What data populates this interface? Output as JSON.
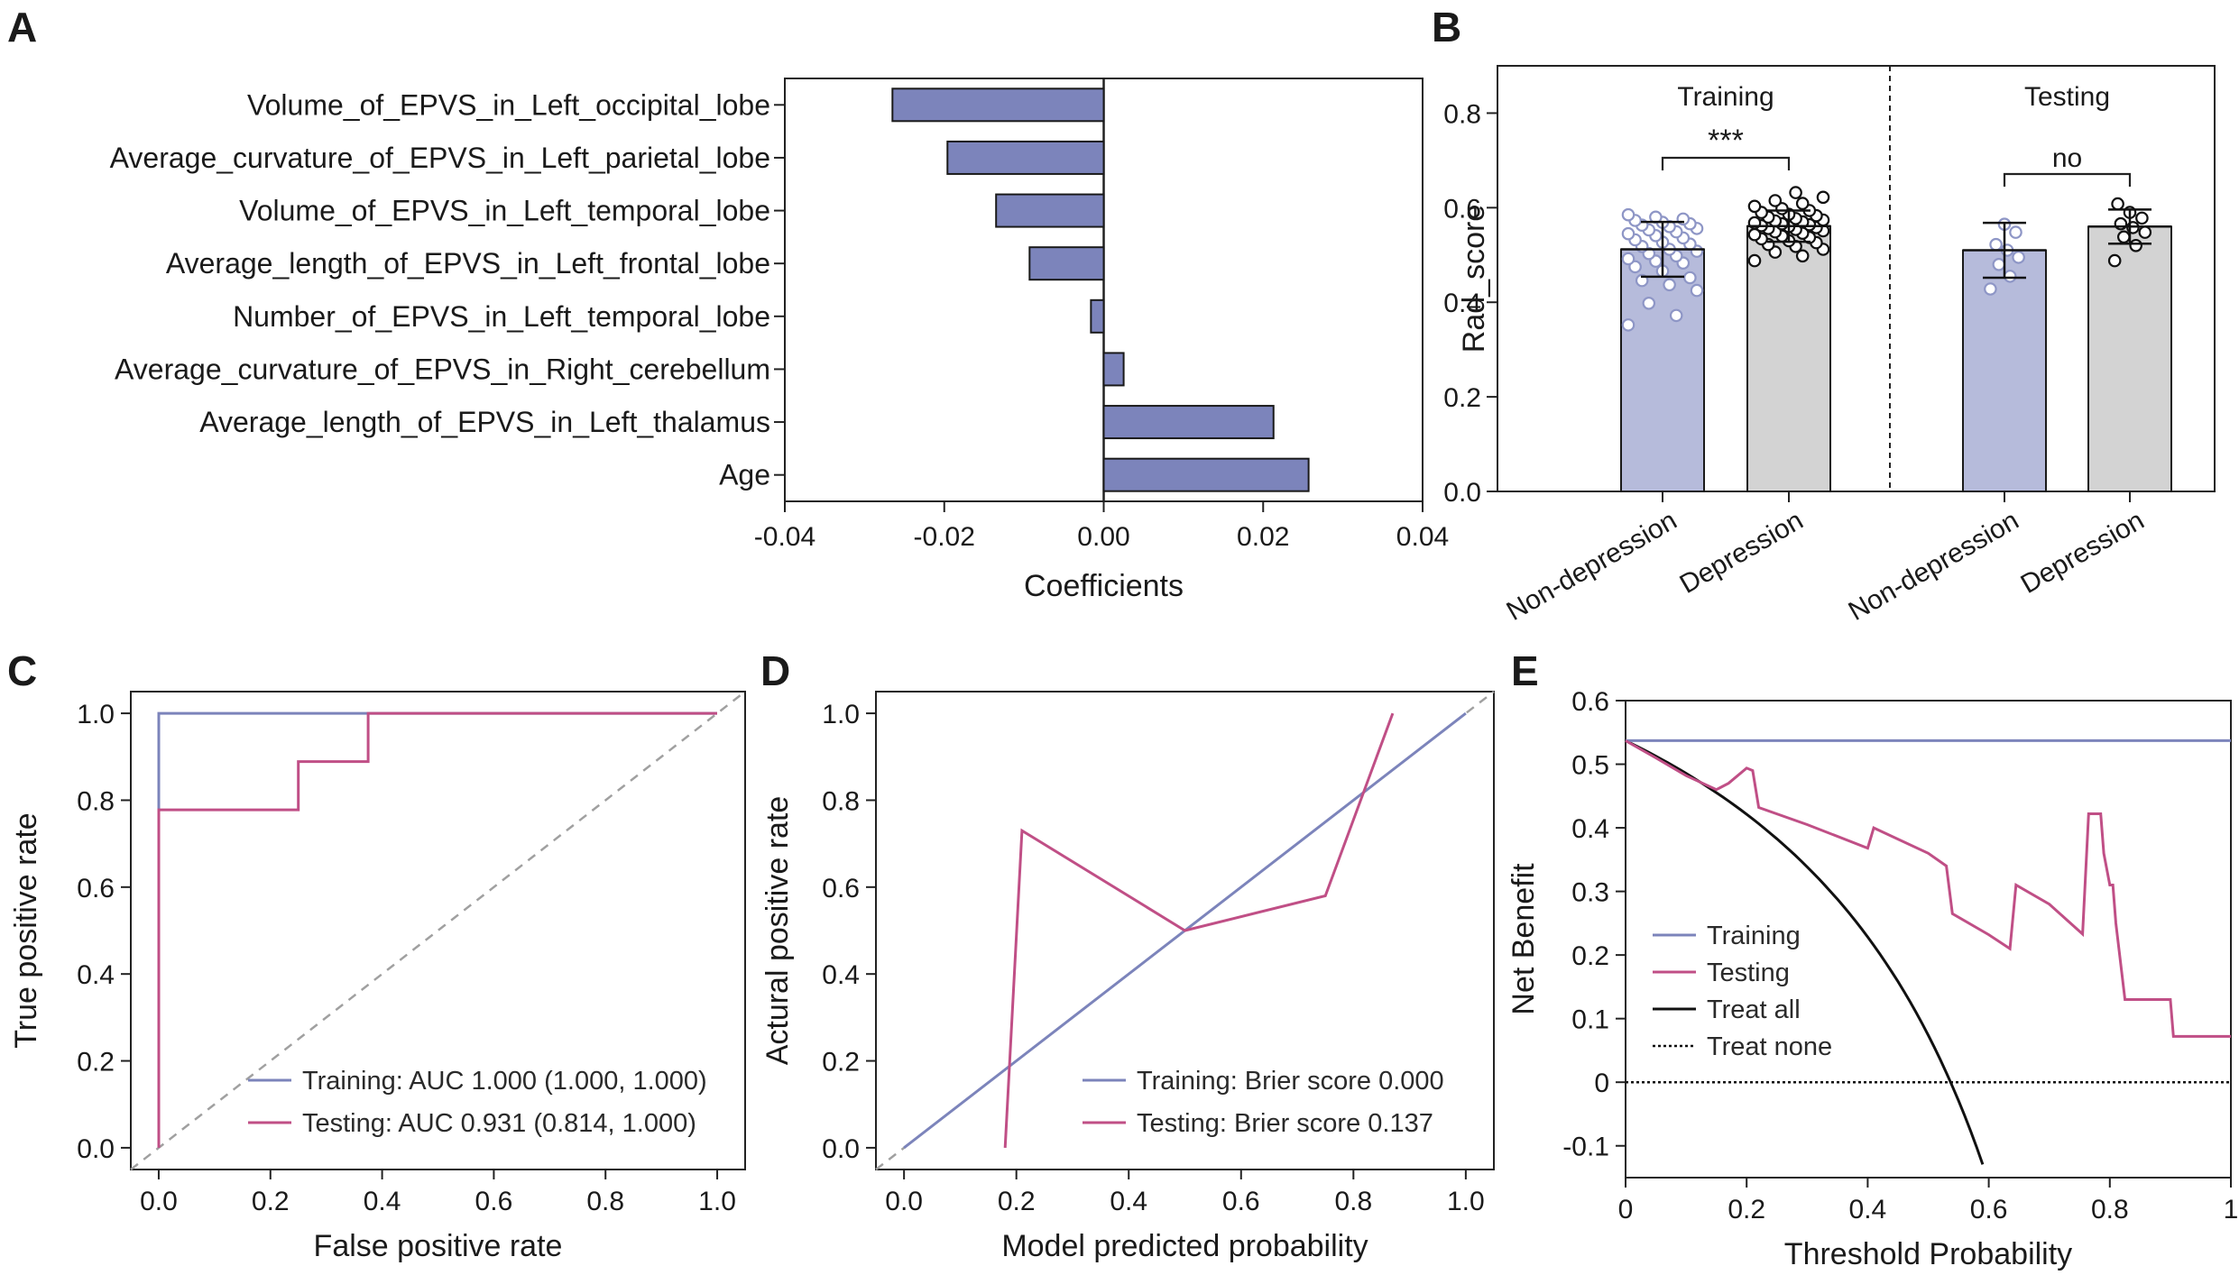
{
  "panels": {
    "A": "A",
    "B": "B",
    "C": "C",
    "D": "D",
    "E": "E"
  },
  "colors": {
    "training": "#7c84bb",
    "testing": "#c04f86",
    "bar_fill_A": "#7c84bb",
    "bar_nondep": "#b6bbdb",
    "bar_dep": "#d3d3d3",
    "dot_nondep": "#8e96c6",
    "black": "#111111",
    "diag": "#a0a0a0"
  },
  "chart_data": [
    {
      "id": "A",
      "type": "bar",
      "orientation": "horizontal",
      "categories": [
        "Volume_of_EPVS_in_Left_occipital_lobe",
        "Average_curvature_of_EPVS_in_Left_parietal_lobe",
        "Volume_of_EPVS_in_Left_temporal_lobe",
        "Average_length_of_EPVS_in_Left_frontal_lobe",
        "Number_of_EPVS_in_Left_temporal_lobe",
        "Average_curvature_of_EPVS_in_Right_cerebellum",
        "Average_length_of_EPVS_in_Left_thalamus",
        "Age"
      ],
      "values": [
        -0.0265,
        -0.0196,
        -0.0135,
        -0.0093,
        -0.0016,
        0.0025,
        0.0213,
        0.0257
      ],
      "xlim": [
        -0.04,
        0.04
      ],
      "xticks": [
        "-0.04",
        "-0.02",
        "0.00",
        "0.02",
        "0.04"
      ],
      "xlabel": "Coefficients"
    },
    {
      "id": "B",
      "type": "bar",
      "ylabel": "Rad_score",
      "ylim": [
        0,
        0.9
      ],
      "yticks": [
        "0.0",
        "0.2",
        "0.4",
        "0.6",
        "0.8"
      ],
      "groups": [
        {
          "name": "Training",
          "significance": "***",
          "bars": [
            {
              "label": "Non-depression",
              "mean": 0.512,
              "sd": 0.058,
              "points": [
                0.352,
                0.372,
                0.398,
                0.425,
                0.437,
                0.446,
                0.452,
                0.466,
                0.475,
                0.483,
                0.487,
                0.492,
                0.498,
                0.503,
                0.508,
                0.512,
                0.518,
                0.523,
                0.527,
                0.532,
                0.536,
                0.541,
                0.545,
                0.549,
                0.553,
                0.556,
                0.56,
                0.563,
                0.566,
                0.569,
                0.573,
                0.576,
                0.58,
                0.585
              ]
            },
            {
              "label": "Depression",
              "mean": 0.561,
              "sd": 0.033,
              "points": [
                0.488,
                0.498,
                0.506,
                0.512,
                0.518,
                0.522,
                0.526,
                0.53,
                0.534,
                0.537,
                0.54,
                0.543,
                0.546,
                0.549,
                0.551,
                0.554,
                0.556,
                0.558,
                0.56,
                0.562,
                0.564,
                0.566,
                0.568,
                0.57,
                0.572,
                0.574,
                0.577,
                0.58,
                0.583,
                0.586,
                0.59,
                0.594,
                0.598,
                0.603,
                0.609,
                0.615,
                0.622,
                0.632
              ]
            }
          ]
        },
        {
          "name": "Testing",
          "significance": "no",
          "bars": [
            {
              "label": "Non-depression",
              "mean": 0.51,
              "sd": 0.058,
              "points": [
                0.428,
                0.455,
                0.48,
                0.495,
                0.51,
                0.522,
                0.548,
                0.565
              ]
            },
            {
              "label": "Depression",
              "mean": 0.56,
              "sd": 0.036,
              "points": [
                0.488,
                0.52,
                0.538,
                0.548,
                0.558,
                0.566,
                0.578,
                0.59,
                0.608
              ]
            }
          ]
        }
      ]
    },
    {
      "id": "C",
      "type": "line",
      "xlabel": "False positive rate",
      "ylabel": "True positive rate",
      "xlim": [
        -0.05,
        1.05
      ],
      "ylim": [
        -0.05,
        1.05
      ],
      "xticks": [
        "0.0",
        "0.2",
        "0.4",
        "0.6",
        "0.8",
        "1.0"
      ],
      "yticks": [
        "0.0",
        "0.2",
        "0.4",
        "0.6",
        "0.8",
        "1.0"
      ],
      "series": [
        {
          "name": "Training: AUC 1.000 (1.000, 1.000)",
          "x": [
            0,
            0,
            1
          ],
          "y": [
            0,
            1,
            1
          ]
        },
        {
          "name": "Testing: AUC 0.931 (0.814, 1.000)",
          "x": [
            0,
            0,
            0.25,
            0.25,
            0.375,
            0.375,
            1
          ],
          "y": [
            0,
            0.778,
            0.778,
            0.889,
            0.889,
            1,
            1
          ]
        }
      ]
    },
    {
      "id": "D",
      "type": "line",
      "xlabel": "Model predicted probability",
      "ylabel": "Actural positive rate",
      "xlim": [
        -0.05,
        1.05
      ],
      "ylim": [
        -0.05,
        1.05
      ],
      "xticks": [
        "0.0",
        "0.2",
        "0.4",
        "0.6",
        "0.8",
        "1.0"
      ],
      "yticks": [
        "0.0",
        "0.2",
        "0.4",
        "0.6",
        "0.8",
        "1.0"
      ],
      "series": [
        {
          "name": "Training: Brier score 0.000",
          "x": [
            0,
            1
          ],
          "y": [
            0,
            1
          ]
        },
        {
          "name": "Testing: Brier score 0.137",
          "x": [
            0.18,
            0.21,
            0.5,
            0.75,
            0.87
          ],
          "y": [
            0,
            0.73,
            0.5,
            0.58,
            1.0
          ]
        }
      ]
    },
    {
      "id": "E",
      "type": "line",
      "xlabel": "Threshold Probability",
      "ylabel": "Net Benefit",
      "xlim": [
        0,
        1
      ],
      "ylim": [
        -0.15,
        0.6
      ],
      "xticks": [
        "0",
        "0.2",
        "0.4",
        "0.6",
        "0.8",
        "1"
      ],
      "yticks": [
        "-0.1",
        "0",
        "0.1",
        "0.2",
        "0.3",
        "0.4",
        "0.5",
        "0.6"
      ],
      "series": [
        {
          "name": "Training",
          "x": [
            0,
            1
          ],
          "y": [
            0.537,
            0.537
          ]
        },
        {
          "name": "Testing",
          "x": [
            0,
            0.05,
            0.1,
            0.15,
            0.17,
            0.2,
            0.21,
            0.22,
            0.3,
            0.4,
            0.41,
            0.5,
            0.53,
            0.54,
            0.6,
            0.635,
            0.645,
            0.7,
            0.755,
            0.765,
            0.785,
            0.79,
            0.8,
            0.805,
            0.81,
            0.825,
            0.9,
            0.905,
            0.95,
            1.0
          ],
          "y": [
            0.537,
            0.51,
            0.482,
            0.46,
            0.47,
            0.494,
            0.49,
            0.432,
            0.405,
            0.368,
            0.4,
            0.36,
            0.34,
            0.265,
            0.232,
            0.21,
            0.31,
            0.28,
            0.233,
            0.422,
            0.422,
            0.36,
            0.31,
            0.31,
            0.25,
            0.13,
            0.13,
            0.072,
            0.072,
            0.072
          ]
        },
        {
          "name": "Treat all",
          "formula": "0.537 - 0.463*t/(1-t)"
        },
        {
          "name": "Treat none",
          "x": [
            0,
            1
          ],
          "y": [
            0,
            0
          ]
        }
      ]
    }
  ]
}
